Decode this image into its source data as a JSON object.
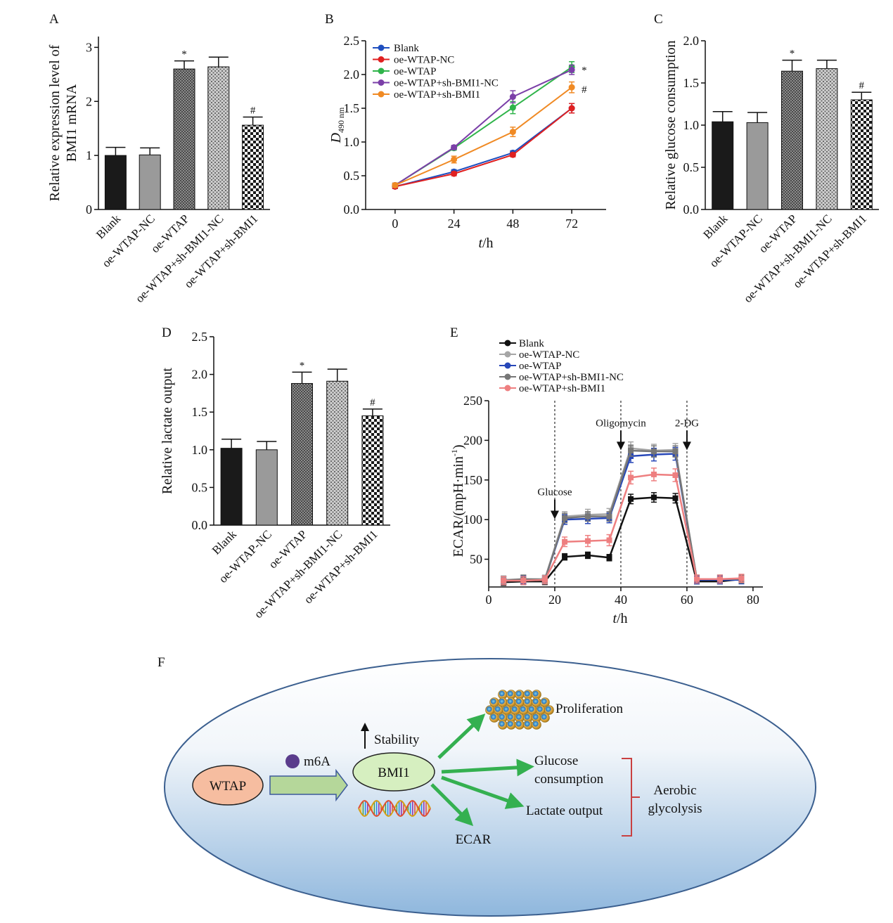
{
  "colors": {
    "blank": "#1a1a1a",
    "oe_wtap_nc": "#999999",
    "blue": "#1f4fbf",
    "red": "#e02020",
    "green": "#2fb44a",
    "purple": "#7b3fa8",
    "orange": "#f08a24",
    "ecar_black": "#111111",
    "ecar_grey": "#a6a6a6",
    "ecar_blue": "#2747b8",
    "ecar_darkgrey": "#777777",
    "ecar_pink": "#ee7f80",
    "arrow_green": "#34b050",
    "wtap_fill": "#f6bda0",
    "bmi1_fill": "#d6efc0",
    "bracket": "#c94040",
    "m6a_dot": "#5a3c8c",
    "cell_fill_top": "#ffffff",
    "cell_fill_bottom": "#8fb7dd",
    "cell_border": "#3b5f8f"
  },
  "chart_data": [
    {
      "panel": "A",
      "type": "bar",
      "ylabel": [
        "Relative expression level of",
        "BMI1 mRNA"
      ],
      "ylim": [
        0,
        3.2
      ],
      "yticks": [
        "0",
        "1",
        "2",
        "3"
      ],
      "categories": [
        "Blank",
        "oe-WTAP-NC",
        "oe-WTAP",
        "oe-WTAP+sh-BMI1-NC",
        "oe-WTAP+sh-BMI1"
      ],
      "values": [
        1.0,
        1.01,
        2.6,
        2.64,
        1.56
      ],
      "errors": [
        0.15,
        0.13,
        0.15,
        0.18,
        0.15
      ],
      "markers": [
        "",
        "",
        "*",
        "",
        "#"
      ],
      "patterns": [
        "solid-black",
        "solid-grey",
        "dense",
        "medium",
        "check"
      ]
    },
    {
      "panel": "B",
      "type": "line",
      "xlabel": "t/h",
      "ylabel": "D490 nm",
      "ylabel_main": "D",
      "ylabel_sub": "490 nm",
      "x": [
        0,
        24,
        48,
        72
      ],
      "xticks": [
        "0",
        "24",
        "48",
        "72"
      ],
      "xlim": [
        -12,
        86
      ],
      "ylim": [
        0,
        2.5
      ],
      "yticks": [
        "0.0",
        "0.5",
        "1.0",
        "1.5",
        "2.0",
        "2.5"
      ],
      "series": [
        {
          "name": "Blank",
          "values": [
            0.34,
            0.56,
            0.84,
            1.5
          ],
          "errors": [
            0.03,
            0.03,
            0.03,
            0.07
          ],
          "color": "#1f4fbf"
        },
        {
          "name": "oe-WTAP-NC",
          "values": [
            0.34,
            0.53,
            0.81,
            1.5
          ],
          "errors": [
            0.03,
            0.03,
            0.03,
            0.07
          ],
          "color": "#e02020"
        },
        {
          "name": "oe-WTAP",
          "values": [
            0.36,
            0.91,
            1.51,
            2.11
          ],
          "errors": [
            0.03,
            0.03,
            0.09,
            0.08
          ],
          "color": "#2fb44a"
        },
        {
          "name": "oe-WTAP+sh-BMI1-NC",
          "values": [
            0.36,
            0.92,
            1.67,
            2.07
          ],
          "errors": [
            0.03,
            0.03,
            0.09,
            0.07
          ],
          "color": "#7b3fa8"
        },
        {
          "name": "oe-WTAP+sh-BMI1",
          "values": [
            0.36,
            0.74,
            1.15,
            1.81
          ],
          "errors": [
            0.03,
            0.05,
            0.07,
            0.08
          ],
          "color": "#f08a24"
        }
      ],
      "markers": [
        "*",
        "#"
      ]
    },
    {
      "panel": "C",
      "type": "bar",
      "ylabel": "Relative glucose consumption",
      "ylim": [
        0,
        2.0
      ],
      "yticks": [
        "0.0",
        "0.5",
        "1.0",
        "1.5",
        "2.0"
      ],
      "categories": [
        "Blank",
        "oe-WTAP-NC",
        "oe-WTAP",
        "oe-WTAP+sh-BMI1-NC",
        "oe-WTAP+sh-BMI1"
      ],
      "values": [
        1.04,
        1.03,
        1.64,
        1.67,
        1.3
      ],
      "errors": [
        0.12,
        0.12,
        0.13,
        0.1,
        0.09
      ],
      "markers": [
        "",
        "",
        "*",
        "",
        "#"
      ],
      "patterns": [
        "solid-black",
        "solid-grey",
        "dense",
        "medium",
        "check"
      ]
    },
    {
      "panel": "D",
      "type": "bar",
      "ylabel": "Relative lactate output",
      "ylim": [
        0,
        2.5
      ],
      "yticks": [
        "0.0",
        "0.5",
        "1.0",
        "1.5",
        "2.0",
        "2.5"
      ],
      "categories": [
        "Blank",
        "oe-WTAP-NC",
        "oe-WTAP",
        "oe-WTAP+sh-BMI1-NC",
        "oe-WTAP+sh-BMI1"
      ],
      "values": [
        1.02,
        1.0,
        1.88,
        1.91,
        1.45
      ],
      "errors": [
        0.12,
        0.11,
        0.15,
        0.16,
        0.09
      ],
      "markers": [
        "",
        "",
        "*",
        "",
        "#"
      ],
      "patterns": [
        "solid-black",
        "solid-grey",
        "dense",
        "medium",
        "check"
      ]
    },
    {
      "panel": "E",
      "type": "line",
      "xlabel": "t/h",
      "ylabel": "ECAR/(mpH·min-1)",
      "ylabel_main": "ECAR/(mpH·min",
      "ylabel_sup": "-1",
      "ylabel_close": ")",
      "x": [
        4.5,
        10.5,
        17,
        23,
        30,
        36.5,
        43,
        50,
        56.5,
        63,
        70,
        76.5
      ],
      "xticks": [
        "0",
        "20",
        "40",
        "60",
        "80"
      ],
      "xtick_values": [
        0,
        20,
        40,
        60,
        80
      ],
      "xlim": [
        0,
        83
      ],
      "ylim": [
        15,
        250
      ],
      "yticks": [
        "50",
        "100",
        "150",
        "200",
        "250"
      ],
      "ytick_values": [
        50,
        100,
        150,
        200,
        250
      ],
      "vlines": [
        20,
        40,
        60
      ],
      "injections": [
        {
          "label": "Glucose",
          "x": 20,
          "y": 113
        },
        {
          "label": "Oligomycin",
          "x": 40,
          "y": 200
        },
        {
          "label": "2-DG",
          "x": 60,
          "y": 200
        }
      ],
      "series": [
        {
          "name": "Blank",
          "values": [
            21,
            22,
            22,
            53,
            55,
            52,
            126,
            128,
            127,
            22,
            22,
            25
          ],
          "errors": [
            4,
            4,
            4,
            4,
            4,
            4,
            6,
            6,
            6,
            3,
            3,
            3
          ],
          "color": "#111111"
        },
        {
          "name": "oe-WTAP-NC",
          "values": [
            24,
            25,
            25,
            104,
            106,
            107,
            190,
            187,
            188,
            25,
            25,
            25
          ],
          "errors": [
            5,
            5,
            5,
            6,
            7,
            7,
            8,
            8,
            8,
            5,
            5,
            5
          ],
          "color": "#a6a6a6"
        },
        {
          "name": "oe-WTAP",
          "values": [
            23,
            24,
            24,
            100,
            101,
            102,
            180,
            182,
            183,
            24,
            24,
            24
          ],
          "errors": [
            5,
            5,
            5,
            6,
            6,
            6,
            8,
            8,
            8,
            5,
            5,
            5
          ],
          "color": "#2747b8"
        },
        {
          "name": "oe-WTAP+sh-BMI1-NC",
          "values": [
            23,
            25,
            24,
            102,
            104,
            104,
            187,
            186,
            186,
            25,
            25,
            25
          ],
          "errors": [
            5,
            5,
            5,
            6,
            6,
            6,
            7,
            7,
            7,
            5,
            5,
            5
          ],
          "color": "#777777"
        },
        {
          "name": "oe-WTAP+sh-BMI1",
          "values": [
            23,
            23,
            24,
            72,
            73,
            74,
            153,
            157,
            156,
            25,
            25,
            26
          ],
          "errors": [
            5,
            5,
            5,
            6,
            7,
            7,
            8,
            8,
            8,
            5,
            5,
            5
          ],
          "color": "#ee7f80"
        }
      ]
    }
  ],
  "panel_labels": {
    "A": "A",
    "B": "B",
    "C": "C",
    "D": "D",
    "E": "E",
    "F": "F"
  },
  "diagram": {
    "wtap": "WTAP",
    "m6a": "m6A",
    "bmi1": "BMI1",
    "stability": "Stability",
    "proliferation": "Proliferation",
    "glucose_line1": "Glucose",
    "glucose_line2": "consumption",
    "lactate": "Lactate output",
    "ecar": "ECAR",
    "aerobic_line1": "Aerobic",
    "aerobic_line2": "glycolysis"
  }
}
